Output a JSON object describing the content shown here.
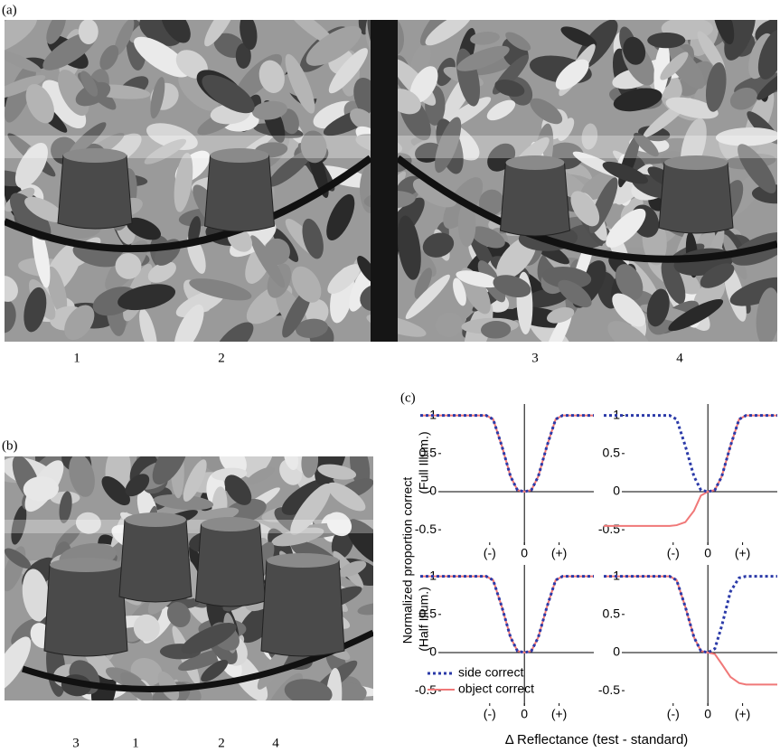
{
  "panel_a": {
    "label": "(a)",
    "object_labels": [
      "1",
      "2",
      "3",
      "4"
    ]
  },
  "panel_b": {
    "label": "(b)",
    "object_labels": [
      "3",
      "1",
      "2",
      "4"
    ]
  },
  "panel_c": {
    "label": "(c)",
    "ylabel": "Normalized proportion correct",
    "row_labels": [
      "(Full Illum.)",
      "(Half Illum.)"
    ],
    "xlabel": "Δ Reflectance (test - standard)"
  },
  "chart_data": [
    {
      "type": "line",
      "x": [
        -3,
        -2,
        -1.1,
        -0.9,
        -0.65,
        -0.4,
        -0.2,
        0,
        0.2,
        0.4,
        0.65,
        0.9,
        1.1,
        2
      ],
      "xlim": [
        -3,
        2
      ],
      "xticks": [
        {
          "value": -1,
          "label": "(-)"
        },
        0,
        {
          "value": 1,
          "label": "(+)"
        }
      ],
      "ylim": [
        -0.7,
        1.15
      ],
      "yticks": [
        1,
        0.5,
        0,
        -0.5
      ],
      "series": [
        {
          "color": "#f07878",
          "style": "solid",
          "values": [
            1,
            1,
            1,
            0.95,
            0.6,
            0.2,
            0.02,
            0,
            0.02,
            0.2,
            0.6,
            0.95,
            1,
            1
          ]
        },
        {
          "color": "#2b3aa8",
          "style": "dotted",
          "values": [
            1,
            1,
            1,
            0.95,
            0.6,
            0.2,
            0.02,
            0,
            0.02,
            0.2,
            0.6,
            0.95,
            1,
            1
          ]
        }
      ]
    },
    {
      "type": "line",
      "x": [
        -3,
        -2,
        -1.1,
        -0.9,
        -0.65,
        -0.4,
        -0.2,
        0,
        0.2,
        0.4,
        0.65,
        0.9,
        1.1,
        2
      ],
      "xlim": [
        -3,
        2
      ],
      "xticks": [
        {
          "value": -1,
          "label": "(-)"
        },
        0,
        {
          "value": 1,
          "label": "(+)"
        }
      ],
      "ylim": [
        -0.7,
        1.15
      ],
      "yticks": [
        1,
        0.5,
        0,
        -0.5
      ],
      "series": [
        {
          "color": "#f07878",
          "style": "solid",
          "values": [
            -0.45,
            -0.45,
            -0.45,
            -0.44,
            -0.4,
            -0.25,
            -0.05,
            0,
            0.02,
            0.2,
            0.6,
            0.95,
            1,
            1
          ]
        },
        {
          "color": "#2b3aa8",
          "style": "dotted",
          "values": [
            1,
            1,
            1,
            0.95,
            0.6,
            0.2,
            0.02,
            0,
            0.02,
            0.2,
            0.6,
            0.95,
            1,
            1
          ]
        }
      ]
    },
    {
      "type": "line",
      "x": [
        -3,
        -2,
        -1.1,
        -0.9,
        -0.65,
        -0.4,
        -0.2,
        0,
        0.2,
        0.4,
        0.65,
        0.9,
        1.1,
        2
      ],
      "xlim": [
        -3,
        2
      ],
      "xticks": [
        {
          "value": -1,
          "label": "(-)"
        },
        0,
        {
          "value": 1,
          "label": "(+)"
        }
      ],
      "ylim": [
        -0.7,
        1.15
      ],
      "yticks": [
        1,
        0.5,
        0,
        -0.5
      ],
      "legend": "lower left",
      "series": [
        {
          "name": "object correct",
          "color": "#f07878",
          "style": "solid",
          "values": [
            1,
            1,
            1,
            0.95,
            0.6,
            0.2,
            0.02,
            0,
            0.02,
            0.2,
            0.6,
            0.95,
            1,
            1
          ]
        },
        {
          "name": "side correct",
          "color": "#2b3aa8",
          "style": "dotted",
          "values": [
            1,
            1,
            1,
            0.95,
            0.6,
            0.2,
            0.02,
            0,
            0.02,
            0.2,
            0.6,
            0.95,
            1,
            1
          ]
        }
      ]
    },
    {
      "type": "line",
      "x": [
        -3,
        -2,
        -1.1,
        -0.9,
        -0.65,
        -0.4,
        -0.2,
        0,
        0.2,
        0.4,
        0.65,
        0.9,
        1.1,
        2
      ],
      "xlim": [
        -3,
        2
      ],
      "xticks": [
        {
          "value": -1,
          "label": "(-)"
        },
        0,
        {
          "value": 1,
          "label": "(+)"
        }
      ],
      "ylim": [
        -0.7,
        1.15
      ],
      "yticks": [
        1,
        0.5,
        0,
        -0.5
      ],
      "series": [
        {
          "color": "#f07878",
          "style": "solid",
          "values": [
            1,
            1,
            1,
            0.95,
            0.6,
            0.2,
            0.02,
            0,
            -0.02,
            -0.15,
            -0.32,
            -0.4,
            -0.42,
            -0.42
          ]
        },
        {
          "color": "#2b3aa8",
          "style": "dotted",
          "values": [
            1,
            1,
            1,
            0.95,
            0.6,
            0.2,
            0.02,
            0,
            0.05,
            0.35,
            0.8,
            0.98,
            1,
            1
          ]
        }
      ]
    }
  ]
}
